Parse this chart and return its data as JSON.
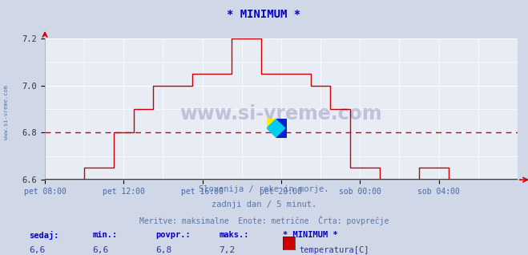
{
  "title": "* MINIMUM *",
  "title_color": "#0000bb",
  "bg_color": "#d0d8e8",
  "plot_bg_color": "#e8ecf4",
  "grid_color": "#ffffff",
  "line_color": "#cc0000",
  "avg_value": 6.8,
  "ylim": [
    6.6,
    7.2
  ],
  "yticks": [
    6.6,
    6.8,
    7.0,
    7.2
  ],
  "xlim": [
    0,
    24
  ],
  "xtick_positions": [
    0,
    4,
    8,
    12,
    16,
    20
  ],
  "xtick_labels": [
    "pet 08:00",
    "pet 12:00",
    "pet 16:00",
    "pet 20:00",
    "sob 00:00",
    "sob 04:00"
  ],
  "subtitle_color": "#5577aa",
  "subtitle1": "Slovenija / reke in morje.",
  "subtitle2": "zadnji dan / 5 minut.",
  "subtitle3": "Meritve: maksimalne  Enote: metrične  Črta: povprečje",
  "footer_label_color": "#0000cc",
  "footer_value_color": "#333399",
  "footer_labels": [
    "sedaj:",
    "min.:",
    "povpr.:",
    "maks.:",
    "* MINIMUM *"
  ],
  "footer_values": [
    "6,6",
    "6,6",
    "6,8",
    "7,2"
  ],
  "legend_label": "temperatura[C]",
  "legend_color": "#cc0000",
  "step_x": [
    0,
    2.0,
    2.0,
    3.5,
    3.5,
    4.5,
    4.5,
    5.5,
    5.5,
    7.5,
    7.5,
    9.5,
    9.5,
    11.0,
    11.0,
    13.5,
    13.5,
    14.5,
    14.5,
    15.5,
    15.5,
    17.0,
    17.0,
    19.0,
    19.0,
    20.5,
    20.5,
    24
  ],
  "step_y": [
    6.6,
    6.6,
    6.65,
    6.65,
    6.8,
    6.8,
    6.9,
    6.9,
    7.0,
    7.0,
    7.05,
    7.05,
    7.2,
    7.2,
    7.05,
    7.05,
    7.0,
    7.0,
    6.9,
    6.9,
    6.65,
    6.65,
    6.6,
    6.6,
    6.65,
    6.65,
    6.6,
    6.6
  ]
}
